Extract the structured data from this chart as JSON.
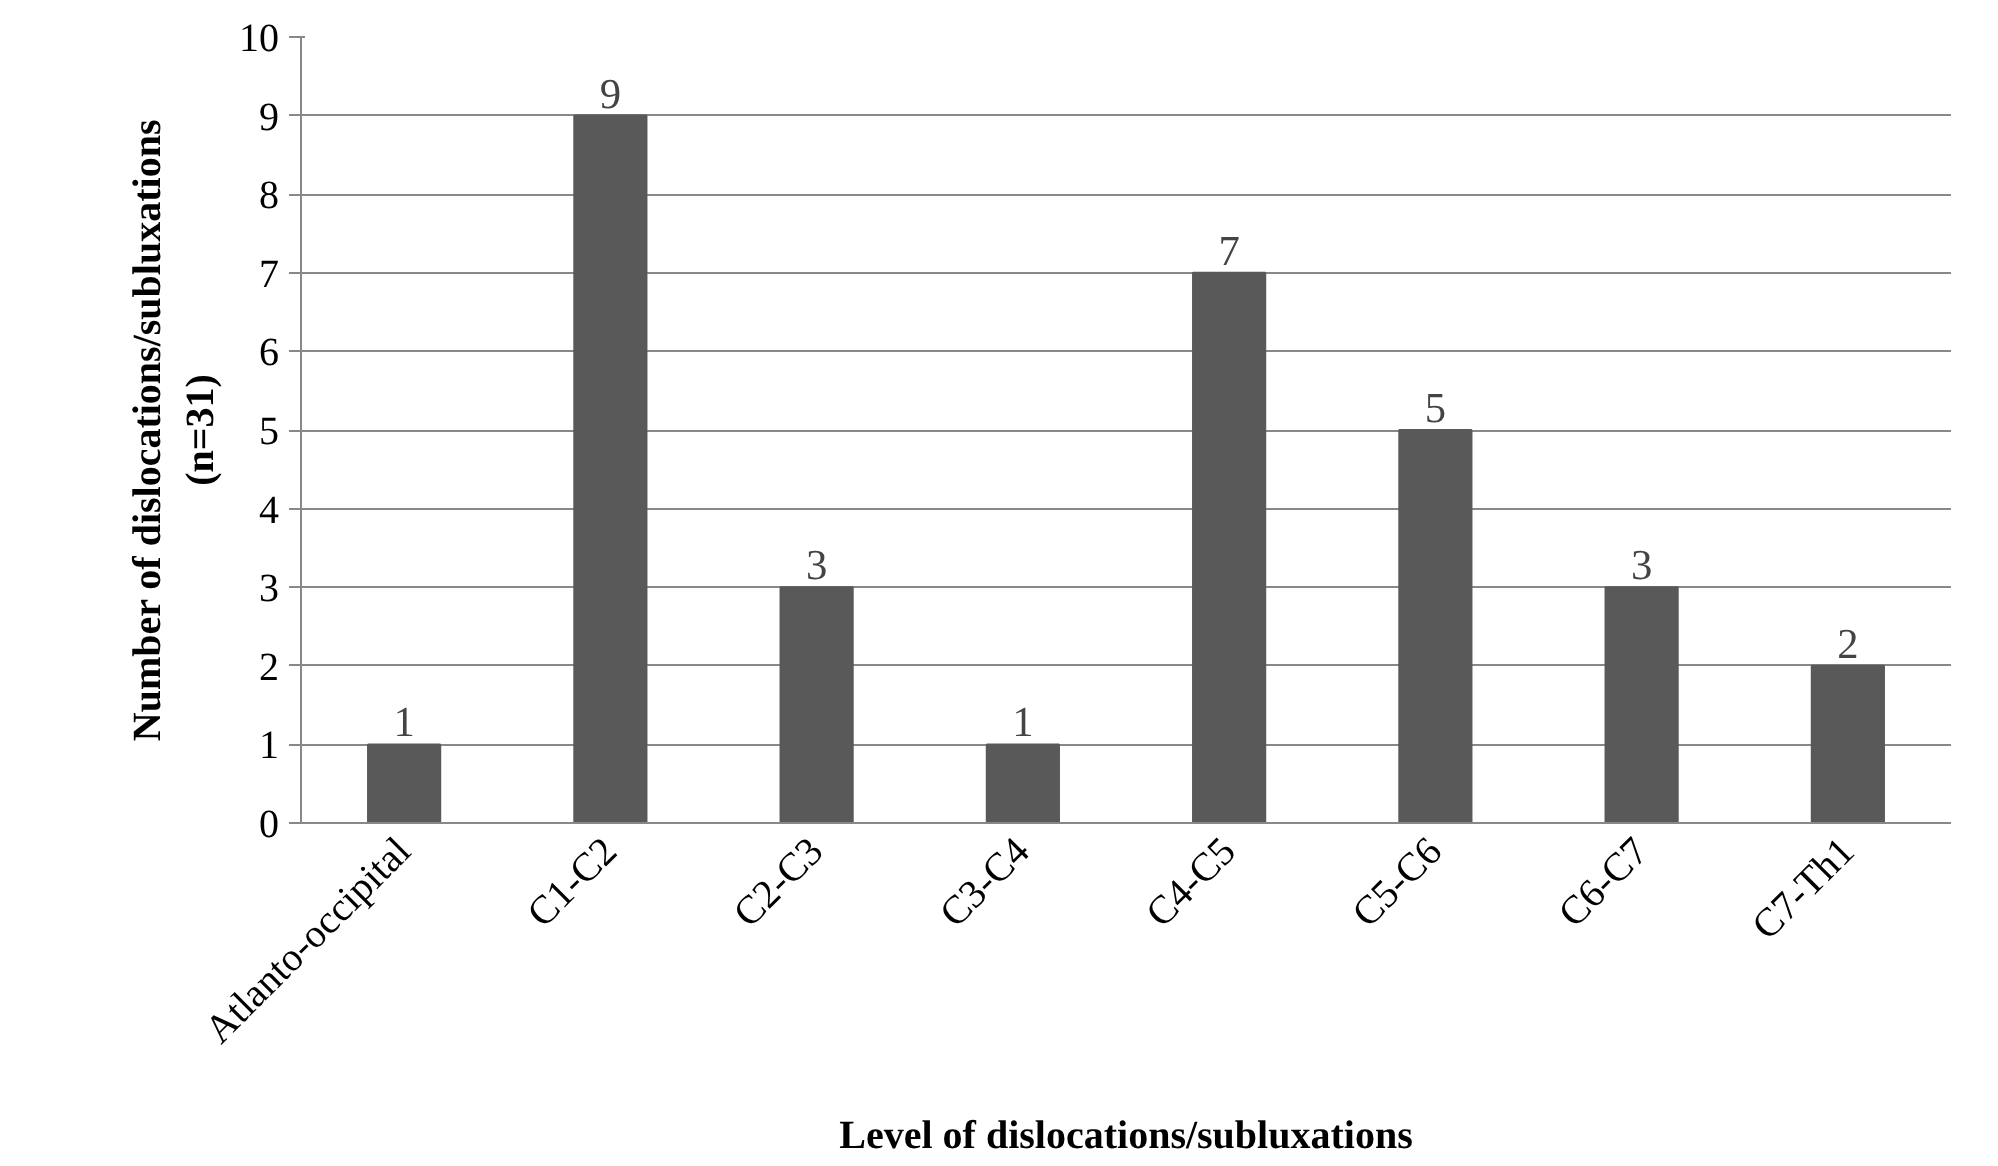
{
  "chart_data": {
    "type": "bar",
    "xlabel": "Level of dislocations/subluxations",
    "ylabel": "Number of dislocations/subluxations (n=31)",
    "categories": [
      "Atlanto-occipital",
      "C1-C2",
      "C2-C3",
      "C3-C4",
      "C4-C5",
      "C5-C6",
      "C6-C7",
      "C7-Th1"
    ],
    "values": [
      1,
      9,
      3,
      1,
      7,
      5,
      3,
      2
    ],
    "color": "#595959",
    "ylim": [
      0,
      10
    ],
    "yticks": [
      0,
      1,
      2,
      3,
      4,
      5,
      6,
      7,
      8,
      9,
      10
    ],
    "grid": "y",
    "data_labels": true
  }
}
